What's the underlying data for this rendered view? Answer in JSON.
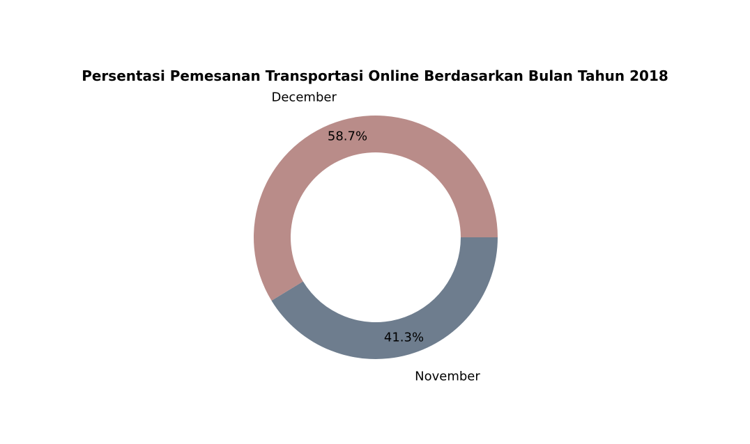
{
  "chart_data": {
    "type": "pie",
    "variant": "donut",
    "title": "Persentasi Pemesanan Transportasi Online Berdasarkan Bulan Tahun 2018",
    "slices": [
      {
        "label": "November",
        "value": 41.3,
        "pct_label": "41.3%",
        "color": "#6e7d8e"
      },
      {
        "label": "December",
        "value": 58.7,
        "pct_label": "58.7%",
        "color": "#b98c89"
      }
    ],
    "start_angle_deg": 0,
    "direction": "clockwise",
    "legend": "none"
  }
}
